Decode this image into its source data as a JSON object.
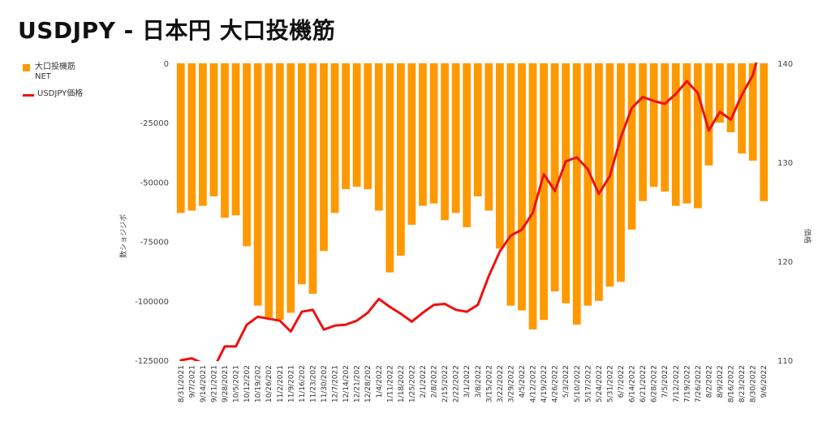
{
  "title": "USDJPY - 日本円 大口投機筋",
  "legend": [
    {
      "label": "大口投機筋\nNET",
      "color": "#FF9900",
      "kind": "bar"
    },
    {
      "label": "USDJPY価格",
      "color": "#EE1111",
      "kind": "line"
    }
  ],
  "chart_data": {
    "type": "bar+line",
    "title": "USDJPY - 日本円 大口投機筋",
    "ylabel_left": "数ショジジボ",
    "ylabel_right": "価格",
    "ylim_left": [
      -125000,
      0
    ],
    "ylim_right": [
      110,
      140
    ],
    "yticks_left": [
      0,
      -25000,
      -50000,
      -75000,
      -100000,
      -125000
    ],
    "yticks_left_labels": [
      "0",
      "-25000",
      "-50000",
      "-75000",
      "-100000",
      "-125000"
    ],
    "yticks_right": [
      110,
      120,
      130,
      140
    ],
    "grid": false,
    "x_tick_labels": [
      "8/31/2021",
      "9/7/2021",
      "9/14/2021",
      "9/21/2021",
      "9/28/2021",
      "10/5/2021",
      "10/12/202",
      "10/19/202",
      "10/26/202",
      "11/2/2021",
      "11/9/2021",
      "11/16/202",
      "11/23/202",
      "11/30/202",
      "12/7/2021",
      "12/14/202",
      "12/21/202",
      "12/28/202",
      "1/4/2022",
      "1/11/2022",
      "1/18/2022",
      "1/25/2022",
      "2/1/2022",
      "2/8/2022",
      "2/15/2022",
      "2/22/2022",
      "3/1/2022",
      "3/8/2022",
      "3/15/2022",
      "3/22/2022",
      "3/29/2022",
      "4/5/2022",
      "4/12/2022",
      "4/19/2022",
      "4/26/2022",
      "5/3/2022",
      "5/10/2022",
      "5/17/2022",
      "5/24/2022",
      "5/31/2022",
      "6/7/2022",
      "6/14/2022",
      "6/21/2022",
      "6/28/2022",
      "7/5/2022",
      "7/12/2022",
      "7/19/2022",
      "7/26/2022",
      "8/2/2022",
      "8/9/2022",
      "8/16/2022",
      "8/23/2022",
      "8/30/2022",
      "9/6/2022"
    ],
    "series": [
      {
        "name": "大口投機筋 NET",
        "type": "bar",
        "axis": "left",
        "color": "#FF9900",
        "values": [
          -63000,
          -62000,
          -60000,
          -56000,
          -65000,
          -64000,
          -77000,
          -102000,
          -107000,
          -108000,
          -105000,
          -93000,
          -97000,
          -79000,
          -63000,
          -53000,
          -52000,
          -53000,
          -62000,
          -88000,
          -81000,
          -68000,
          -60000,
          -59000,
          -66000,
          -63000,
          -69000,
          -56000,
          -62000,
          -78000,
          -102000,
          -104000,
          -112000,
          -108000,
          -96000,
          -101000,
          -110000,
          -102000,
          -100000,
          -94000,
          -92000,
          -70000,
          -58000,
          -52000,
          -54000,
          -60000,
          -59000,
          -61000,
          -43000,
          -25000,
          -29000,
          -38000,
          -41000,
          -58000
        ]
      },
      {
        "name": "USDJPY価格",
        "type": "line",
        "axis": "right",
        "color": "#EE1111",
        "values": [
          110.0,
          110.2,
          109.7,
          109.2,
          111.4,
          111.4,
          113.6,
          114.4,
          114.2,
          114.0,
          112.9,
          114.9,
          115.1,
          113.1,
          113.5,
          113.6,
          114.0,
          114.8,
          116.2,
          115.4,
          114.7,
          113.9,
          114.8,
          115.6,
          115.7,
          115.1,
          114.9,
          115.6,
          118.5,
          121.0,
          122.6,
          123.2,
          124.9,
          128.8,
          127.1,
          130.1,
          130.5,
          129.3,
          126.8,
          128.6,
          132.5,
          135.5,
          136.6,
          136.2,
          135.9,
          136.9,
          138.2,
          137.0,
          133.2,
          135.1,
          134.3,
          136.8,
          138.8,
          142.8
        ]
      }
    ]
  }
}
